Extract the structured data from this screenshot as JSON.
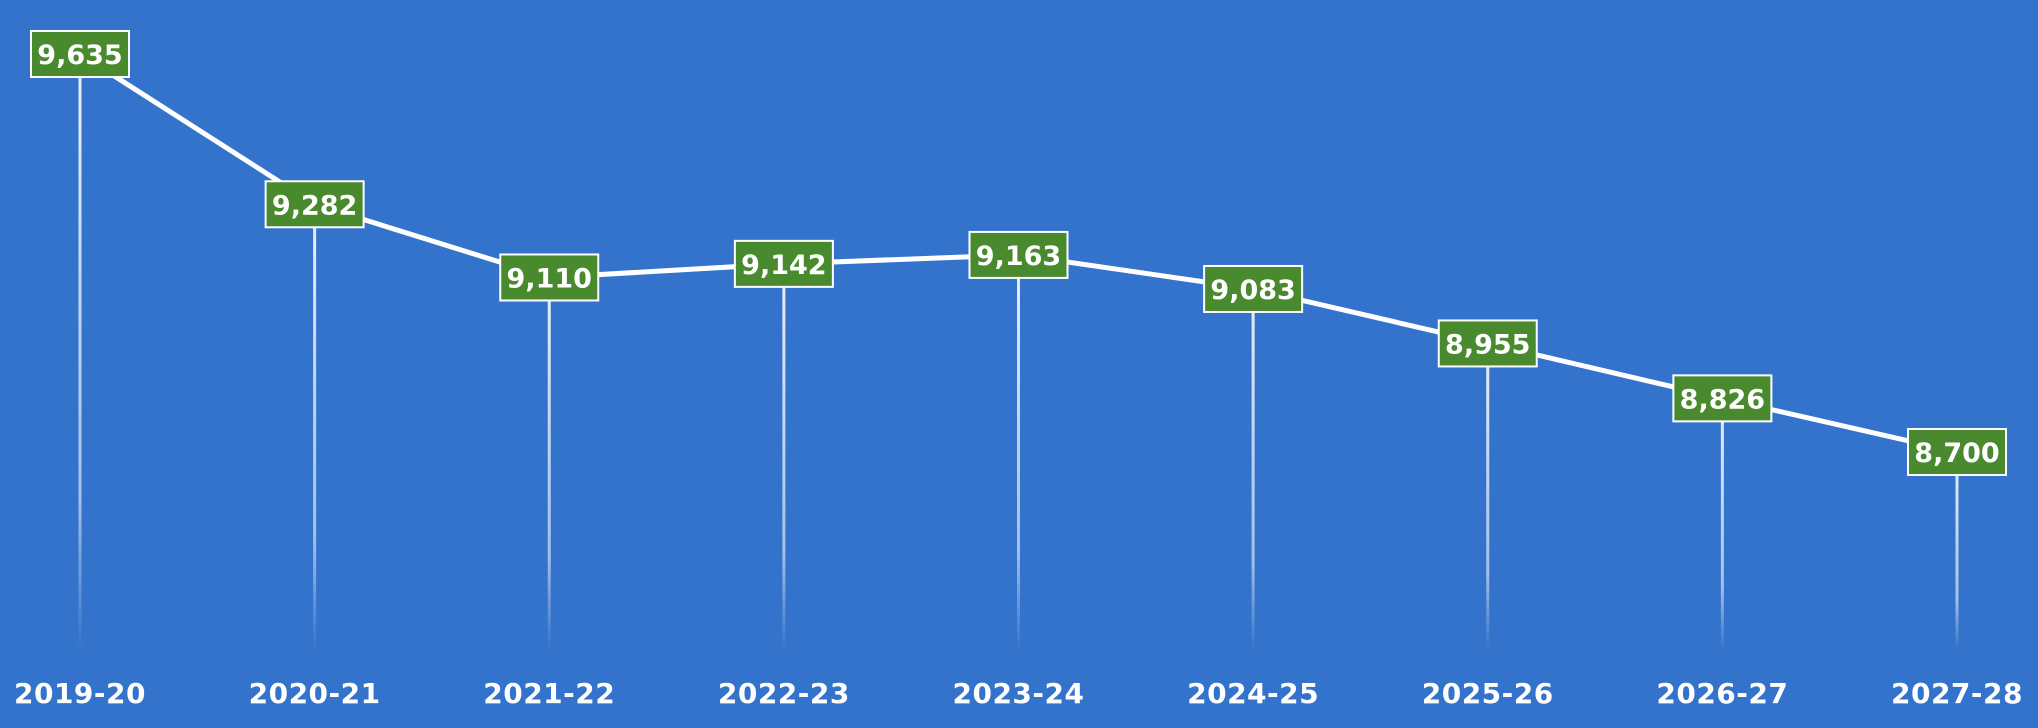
{
  "chart_data": {
    "type": "line",
    "categories": [
      "2019-20",
      "2020-21",
      "2021-22",
      "2022-23",
      "2023-24",
      "2024-25",
      "2025-26",
      "2026-27",
      "2027-28"
    ],
    "series": [
      {
        "values": [
          9635,
          9282,
          9110,
          9142,
          9163,
          9083,
          8955,
          8826,
          8700
        ],
        "data_labels": [
          "9,635",
          "9,282",
          "9,110",
          "9,142",
          "9,163",
          "9,083",
          "8,955",
          "8,826",
          "8,700"
        ]
      }
    ],
    "title": "",
    "xlabel": "",
    "ylabel": "",
    "y_axis_visible": false,
    "grid": false,
    "drop_lines": true,
    "legend": "none"
  },
  "colors": {
    "background": "#3373cc",
    "line": "#ffffff",
    "label_fill": "#4a8a2e",
    "label_border": "#ffffff",
    "label_text": "#ffffff",
    "drop_line": "#ffffff",
    "tick_text": "#ffffff"
  }
}
